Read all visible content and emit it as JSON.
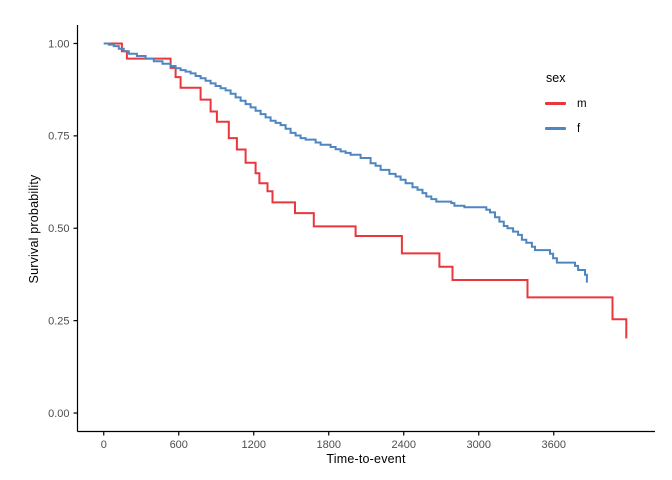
{
  "chart_data": {
    "type": "line",
    "subtype": "kaplan-meier-step",
    "title": "",
    "xlabel": "Time-to-event",
    "ylabel": "Survival probability",
    "xlim": [
      -210,
      4410
    ],
    "ylim": [
      -0.05,
      1.05
    ],
    "grid": false,
    "x_ticks": [
      0,
      600,
      1200,
      1800,
      2400,
      3000,
      3600
    ],
    "x_tick_labels": [
      "0",
      "600",
      "1200",
      "1800",
      "2400",
      "3000",
      "3600"
    ],
    "y_ticks": [
      0,
      0.25,
      0.5,
      0.75,
      1
    ],
    "y_tick_labels": [
      "0.00",
      "0.25",
      "0.50",
      "0.75",
      "1.00"
    ],
    "axis_color": "#000000",
    "tick_label_color": "#4d4d4d",
    "legend": {
      "title": "sex",
      "position": "right"
    },
    "series": [
      {
        "name": "m",
        "color": "#E8373D",
        "points": [
          [
            0,
            1.0
          ],
          [
            145,
            0.979
          ],
          [
            185,
            0.959
          ],
          [
            535,
            0.934
          ],
          [
            575,
            0.909
          ],
          [
            615,
            0.88
          ],
          [
            775,
            0.848
          ],
          [
            855,
            0.816
          ],
          [
            905,
            0.788
          ],
          [
            1000,
            0.744
          ],
          [
            1065,
            0.713
          ],
          [
            1135,
            0.677
          ],
          [
            1215,
            0.649
          ],
          [
            1245,
            0.622
          ],
          [
            1310,
            0.6
          ],
          [
            1350,
            0.57
          ],
          [
            1530,
            0.541
          ],
          [
            1680,
            0.505
          ],
          [
            2015,
            0.479
          ],
          [
            2385,
            0.432
          ],
          [
            2685,
            0.396
          ],
          [
            2790,
            0.36
          ],
          [
            3390,
            0.313
          ],
          [
            4070,
            0.254
          ],
          [
            4180,
            0.202
          ]
        ]
      },
      {
        "name": "f",
        "color": "#4F86C0",
        "points": [
          [
            0,
            1.0
          ],
          [
            40,
            0.997
          ],
          [
            80,
            0.993
          ],
          [
            120,
            0.986
          ],
          [
            160,
            0.979
          ],
          [
            200,
            0.972
          ],
          [
            265,
            0.966
          ],
          [
            335,
            0.959
          ],
          [
            400,
            0.952
          ],
          [
            470,
            0.945
          ],
          [
            535,
            0.939
          ],
          [
            575,
            0.933
          ],
          [
            615,
            0.928
          ],
          [
            655,
            0.924
          ],
          [
            695,
            0.919
          ],
          [
            735,
            0.912
          ],
          [
            775,
            0.906
          ],
          [
            815,
            0.899
          ],
          [
            855,
            0.892
          ],
          [
            895,
            0.885
          ],
          [
            935,
            0.879
          ],
          [
            975,
            0.873
          ],
          [
            1015,
            0.864
          ],
          [
            1055,
            0.854
          ],
          [
            1095,
            0.845
          ],
          [
            1135,
            0.836
          ],
          [
            1175,
            0.827
          ],
          [
            1215,
            0.818
          ],
          [
            1255,
            0.809
          ],
          [
            1295,
            0.8
          ],
          [
            1335,
            0.791
          ],
          [
            1375,
            0.785
          ],
          [
            1415,
            0.779
          ],
          [
            1455,
            0.769
          ],
          [
            1495,
            0.758
          ],
          [
            1535,
            0.751
          ],
          [
            1575,
            0.744
          ],
          [
            1615,
            0.74
          ],
          [
            1695,
            0.732
          ],
          [
            1735,
            0.726
          ],
          [
            1815,
            0.72
          ],
          [
            1855,
            0.714
          ],
          [
            1895,
            0.708
          ],
          [
            1935,
            0.704
          ],
          [
            1975,
            0.699
          ],
          [
            2055,
            0.69
          ],
          [
            2135,
            0.676
          ],
          [
            2175,
            0.669
          ],
          [
            2215,
            0.658
          ],
          [
            2285,
            0.647
          ],
          [
            2335,
            0.64
          ],
          [
            2375,
            0.631
          ],
          [
            2415,
            0.622
          ],
          [
            2470,
            0.611
          ],
          [
            2510,
            0.604
          ],
          [
            2550,
            0.595
          ],
          [
            2580,
            0.586
          ],
          [
            2620,
            0.579
          ],
          [
            2660,
            0.572
          ],
          [
            2780,
            0.568
          ],
          [
            2805,
            0.561
          ],
          [
            2885,
            0.557
          ],
          [
            3060,
            0.55
          ],
          [
            3090,
            0.543
          ],
          [
            3130,
            0.53
          ],
          [
            3165,
            0.518
          ],
          [
            3200,
            0.506
          ],
          [
            3230,
            0.5
          ],
          [
            3275,
            0.491
          ],
          [
            3315,
            0.482
          ],
          [
            3345,
            0.469
          ],
          [
            3380,
            0.461
          ],
          [
            3425,
            0.45
          ],
          [
            3450,
            0.441
          ],
          [
            3570,
            0.431
          ],
          [
            3595,
            0.419
          ],
          [
            3625,
            0.407
          ],
          [
            3770,
            0.398
          ],
          [
            3795,
            0.387
          ],
          [
            3850,
            0.374
          ],
          [
            3865,
            0.353
          ]
        ]
      }
    ]
  }
}
